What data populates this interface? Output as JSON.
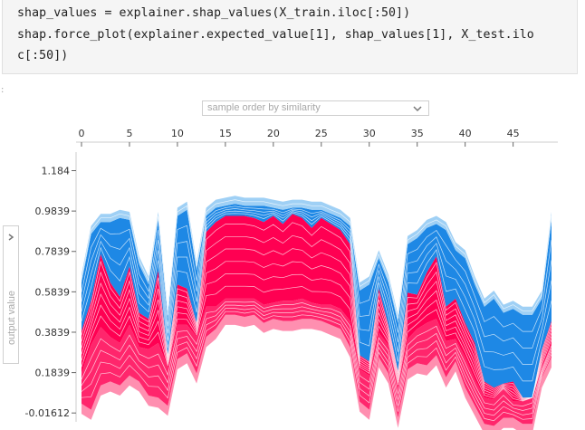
{
  "code": {
    "lines": [
      "shap_values = explainer.shap_values(X_train.iloc[:50])",
      "shap.force_plot(explainer.expected_value[1], shap_values[1], X_test.ilo",
      "c[:50])"
    ]
  },
  "output": {
    "marker": ":"
  },
  "controls": {
    "order_select": {
      "value": "sample order by similarity",
      "icon": "chevron-down-icon"
    },
    "y_axis_toggle": {
      "label": "output value",
      "icon": "chevron-right-icon"
    }
  },
  "colors": {
    "positive": "#ff0052",
    "negative": "#1e88e5",
    "positive_light": "#ff8fb0",
    "negative_light": "#9fd0f5"
  },
  "chart_data": {
    "type": "area",
    "x_ticks": [
      0,
      5,
      10,
      15,
      20,
      25,
      30,
      35,
      40,
      45
    ],
    "y_ticks": [
      "1.184",
      "0.9839",
      "0.7839",
      "0.5839",
      "0.3839",
      "0.1839",
      "-0.01612"
    ],
    "ylim": [
      -0.06,
      1.24
    ],
    "xlim": [
      -0.5,
      49.5
    ],
    "x": [
      0,
      1,
      2,
      3,
      4,
      5,
      6,
      7,
      8,
      9,
      10,
      11,
      12,
      13,
      14,
      15,
      16,
      17,
      18,
      19,
      20,
      21,
      22,
      23,
      24,
      25,
      26,
      27,
      28,
      29,
      30,
      31,
      32,
      33,
      34,
      35,
      36,
      37,
      38,
      39,
      40,
      41,
      42,
      43,
      44,
      45,
      46,
      47,
      48,
      49
    ],
    "series": [
      {
        "name": "",
        "values": [
          0.03,
          0.0,
          0.12,
          0.14,
          0.12,
          0.17,
          0.14,
          0.07,
          0.06,
          0.02,
          0.25,
          0.28,
          0.18,
          0.36,
          0.4,
          0.47,
          0.47,
          0.46,
          0.47,
          0.43,
          0.45,
          0.44,
          0.44,
          0.45,
          0.45,
          0.44,
          0.42,
          0.4,
          0.31,
          0.04,
          0.0,
          0.26,
          0.18,
          -0.04,
          0.2,
          0.23,
          0.22,
          0.27,
          0.16,
          0.24,
          0.11,
          0.02,
          -0.07,
          -0.08,
          -0.04,
          -0.04,
          -0.07,
          -0.07,
          0.16,
          0.26
        ]
      },
      {
        "name": "",
        "values": [
          0.18,
          0.32,
          0.41,
          0.36,
          0.33,
          0.42,
          0.31,
          0.3,
          0.33,
          0.21,
          0.42,
          0.42,
          0.36,
          0.51,
          0.51,
          0.55,
          0.55,
          0.55,
          0.55,
          0.52,
          0.53,
          0.54,
          0.54,
          0.55,
          0.53,
          0.52,
          0.52,
          0.5,
          0.44,
          0.2,
          0.17,
          0.38,
          0.32,
          0.11,
          0.35,
          0.4,
          0.43,
          0.45,
          0.34,
          0.35,
          0.26,
          0.15,
          0.06,
          0.05,
          0.1,
          0.04,
          0.04,
          0.06,
          0.21,
          0.33
        ]
      },
      {
        "name": "",
        "values": [
          0.39,
          0.54,
          0.77,
          0.63,
          0.56,
          0.71,
          0.48,
          0.45,
          0.69,
          0.27,
          0.62,
          0.6,
          0.43,
          0.88,
          0.93,
          0.96,
          0.96,
          0.96,
          0.95,
          0.93,
          0.96,
          0.92,
          0.97,
          0.95,
          0.9,
          0.95,
          0.92,
          0.89,
          0.82,
          0.27,
          0.24,
          0.6,
          0.42,
          0.19,
          0.58,
          0.57,
          0.68,
          0.76,
          0.51,
          0.55,
          0.43,
          0.33,
          0.14,
          0.11,
          0.13,
          0.14,
          0.06,
          0.06,
          0.3,
          0.44
        ]
      },
      {
        "name": "",
        "values": [
          0.63,
          0.87,
          0.93,
          0.93,
          0.95,
          0.94,
          0.72,
          0.62,
          0.94,
          0.45,
          0.96,
          0.99,
          0.69,
          0.96,
          1.0,
          1.01,
          1.02,
          1.01,
          1.01,
          1.01,
          1.0,
          0.99,
          1.0,
          1.0,
          0.99,
          0.99,
          0.97,
          0.95,
          0.91,
          0.59,
          0.62,
          0.75,
          0.63,
          0.43,
          0.82,
          0.85,
          0.9,
          0.92,
          0.89,
          0.79,
          0.75,
          0.62,
          0.51,
          0.55,
          0.48,
          0.5,
          0.47,
          0.47,
          0.55,
          0.94
        ]
      }
    ]
  }
}
